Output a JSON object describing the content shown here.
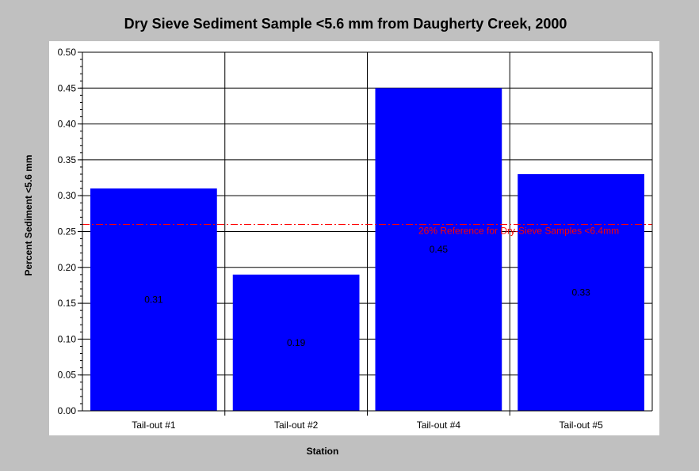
{
  "chart_data": {
    "type": "bar",
    "title": "Dry Sieve Sediment Sample <5.6 mm from Daugherty Creek, 2000",
    "xlabel": "Station",
    "ylabel": "Percent Sediment <5.6 mm",
    "categories": [
      "Tail-out #1",
      "Tail-out #2",
      "Tail-out #4",
      "Tail-out #5"
    ],
    "values": [
      0.31,
      0.19,
      0.45,
      0.33
    ],
    "data_labels": [
      "0.31",
      "0.19",
      "0.45",
      "0.33"
    ],
    "ylim": [
      0,
      0.5
    ],
    "yticks": [
      "0.00",
      "0.05",
      "0.10",
      "0.15",
      "0.20",
      "0.25",
      "0.30",
      "0.35",
      "0.40",
      "0.45",
      "0.50"
    ],
    "grid": true,
    "bar_color": "#0000ff",
    "reference_line": {
      "value": 0.26,
      "label": "26% Reference for Dry-Sieve Samples <6.4mm",
      "color": "#ff0000"
    }
  }
}
